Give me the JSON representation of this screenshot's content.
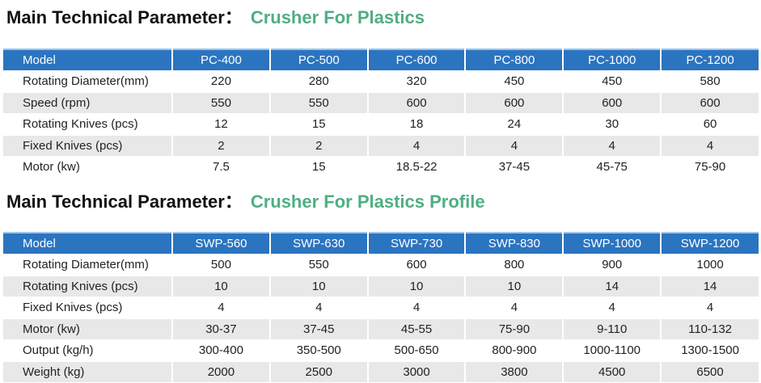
{
  "section1": {
    "title_main": "Main Technical Parameter：",
    "title_sub": "Crusher For Plastics",
    "header": [
      "Model",
      "PC-400",
      "PC-500",
      "PC-600",
      "PC-800",
      "PC-1000",
      "PC-1200"
    ],
    "rows": [
      [
        "Rotating Diameter(mm)",
        "220",
        "280",
        "320",
        "450",
        "450",
        "580"
      ],
      [
        "Speed (rpm)",
        "550",
        "550",
        "600",
        "600",
        "600",
        "600"
      ],
      [
        "Rotating Knives (pcs)",
        "12",
        "15",
        "18",
        "24",
        "30",
        "60"
      ],
      [
        "Fixed Knives (pcs)",
        "2",
        "2",
        "4",
        "4",
        "4",
        "4"
      ],
      [
        "Motor (kw)",
        "7.5",
        "15",
        "18.5-22",
        "37-45",
        "45-75",
        "75-90"
      ]
    ]
  },
  "section2": {
    "title_main": "Main Technical Parameter：",
    "title_sub": "Crusher For Plastics Profile",
    "header": [
      "Model",
      "SWP-560",
      "SWP-630",
      "SWP-730",
      "SWP-830",
      "SWP-1000",
      "SWP-1200"
    ],
    "rows": [
      [
        "Rotating Diameter(mm)",
        "500",
        "550",
        "600",
        "800",
        "900",
        "1000"
      ],
      [
        "Rotating Knives (pcs)",
        "10",
        "10",
        "10",
        "10",
        "14",
        "14"
      ],
      [
        "Fixed Knives (pcs)",
        "4",
        "4",
        "4",
        "4",
        "4",
        "4"
      ],
      [
        "Motor (kw)",
        "30-37",
        "37-45",
        "45-55",
        "75-90",
        "9-110",
        "110-132"
      ],
      [
        "Output (kg/h)",
        "300-400",
        "350-500",
        "500-650",
        "800-900",
        "1000-1100",
        "1300-1500"
      ],
      [
        "Weight (kg)",
        "2000",
        "2500",
        "3000",
        "3800",
        "4500",
        "6500"
      ]
    ]
  },
  "colors": {
    "header_bg": "#2b74c0",
    "accent_green": "#4fae82",
    "stripe": "#e8e8e8"
  }
}
